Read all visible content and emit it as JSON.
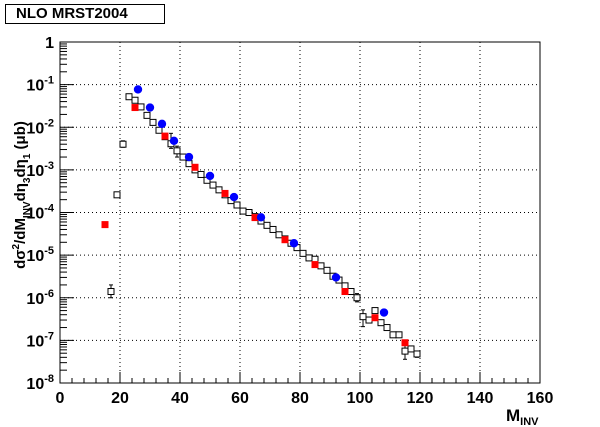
{
  "legend": {
    "label": "NLO MRST2004"
  },
  "chart_data": {
    "type": "scatter",
    "xlabel": "M",
    "xlabel_sub": "INV",
    "ylabel_parts": [
      {
        "t": "dσ"
      },
      {
        "t": "2",
        "sup": true
      },
      {
        "t": "/dM"
      },
      {
        "t": "INV",
        "sub": true
      },
      {
        "t": "dη"
      },
      {
        "t": "3",
        "sub": true
      },
      {
        "t": "dη"
      },
      {
        "t": "1",
        "sub": true
      },
      {
        "t": "  (μb)"
      }
    ],
    "xlim": [
      0,
      160
    ],
    "ylim": [
      1e-08,
      1
    ],
    "y_log": true,
    "grid": true,
    "x_ticks": [
      "0",
      "20",
      "40",
      "60",
      "80",
      "100",
      "120",
      "140",
      "160"
    ],
    "y_ticks": [
      {
        "base": "1",
        "exp": ""
      },
      {
        "base": "10",
        "exp": "-1"
      },
      {
        "base": "10",
        "exp": "-2"
      },
      {
        "base": "10",
        "exp": "-3"
      },
      {
        "base": "10",
        "exp": "-4"
      },
      {
        "base": "10",
        "exp": "-5"
      },
      {
        "base": "10",
        "exp": "-6"
      },
      {
        "base": "10",
        "exp": "-7"
      },
      {
        "base": "10",
        "exp": "-8"
      }
    ],
    "series": [
      {
        "marker": "open-square",
        "color": "#000000",
        "points": [
          {
            "x": 17,
            "y": 1.4e-06,
            "ylo": 1e-06,
            "yhi": 2e-06
          },
          {
            "x": 19,
            "y": 0.00026
          },
          {
            "x": 21,
            "y": 0.004,
            "ylo": 0.0034,
            "yhi": 0.0048
          },
          {
            "x": 23,
            "y": 0.052
          },
          {
            "x": 25,
            "y": 0.043
          },
          {
            "x": 27,
            "y": 0.03
          },
          {
            "x": 29,
            "y": 0.019
          },
          {
            "x": 31,
            "y": 0.013
          },
          {
            "x": 33,
            "y": 0.0085
          },
          {
            "x": 35,
            "y": 0.006
          },
          {
            "x": 37,
            "y": 0.0041,
            "ylo": 0.0032,
            "yhi": 0.0072
          },
          {
            "x": 39,
            "y": 0.0028,
            "ylo": 0.002,
            "yhi": 0.0036
          },
          {
            "x": 41,
            "y": 0.002
          },
          {
            "x": 43,
            "y": 0.0014
          },
          {
            "x": 45,
            "y": 0.001
          },
          {
            "x": 47,
            "y": 0.00078
          },
          {
            "x": 49,
            "y": 0.00057
          },
          {
            "x": 51,
            "y": 0.00044
          },
          {
            "x": 53,
            "y": 0.00034
          },
          {
            "x": 55,
            "y": 0.00026
          },
          {
            "x": 57,
            "y": 0.00019
          },
          {
            "x": 59,
            "y": 0.00015
          },
          {
            "x": 61,
            "y": 0.000108
          },
          {
            "x": 63,
            "y": 0.0001
          },
          {
            "x": 65,
            "y": 8e-05
          },
          {
            "x": 67,
            "y": 6.3e-05
          },
          {
            "x": 69,
            "y": 5e-05
          },
          {
            "x": 71,
            "y": 4e-05
          },
          {
            "x": 73,
            "y": 3e-05
          },
          {
            "x": 75,
            "y": 2.4e-05
          },
          {
            "x": 77,
            "y": 1.9e-05
          },
          {
            "x": 79,
            "y": 1.5e-05
          },
          {
            "x": 81,
            "y": 1.1e-05
          },
          {
            "x": 83,
            "y": 8.6e-06
          },
          {
            "x": 85,
            "y": 8e-06
          },
          {
            "x": 87,
            "y": 5.6e-06
          },
          {
            "x": 89,
            "y": 4.4e-06
          },
          {
            "x": 91,
            "y": 3.2e-06
          },
          {
            "x": 93,
            "y": 2.6e-06
          },
          {
            "x": 95,
            "y": 1.9e-06
          },
          {
            "x": 97,
            "y": 1.4e-06
          },
          {
            "x": 99,
            "y": 1e-06,
            "ylo": 8e-07,
            "yhi": 1.25e-06
          },
          {
            "x": 101,
            "y": 3.6e-07,
            "ylo": 2.1e-07,
            "yhi": 5.2e-07
          },
          {
            "x": 103,
            "y": 3e-07
          },
          {
            "x": 105,
            "y": 5e-07
          },
          {
            "x": 107,
            "y": 2.6e-07
          },
          {
            "x": 109,
            "y": 2e-07
          },
          {
            "x": 111,
            "y": 1.35e-07
          },
          {
            "x": 113,
            "y": 1.35e-07
          },
          {
            "x": 115,
            "y": 5.6e-08,
            "ylo": 3.6e-08,
            "yhi": 8e-08
          },
          {
            "x": 117,
            "y": 6.3e-08
          },
          {
            "x": 119,
            "y": 4.8e-08,
            "ylo": 4e-08,
            "yhi": 5.6e-08
          }
        ]
      },
      {
        "marker": "filled-square",
        "color": "#ff0000",
        "points": [
          {
            "x": 15,
            "y": 5.2e-05
          },
          {
            "x": 25,
            "y": 0.029
          },
          {
            "x": 35,
            "y": 0.0062
          },
          {
            "x": 45,
            "y": 0.00115
          },
          {
            "x": 55,
            "y": 0.00028
          },
          {
            "x": 65,
            "y": 7.6e-05
          },
          {
            "x": 75,
            "y": 2.3e-05
          },
          {
            "x": 85,
            "y": 6e-06
          },
          {
            "x": 95,
            "y": 1.4e-06
          },
          {
            "x": 105,
            "y": 3.4e-07
          },
          {
            "x": 115,
            "y": 8.8e-08
          }
        ]
      },
      {
        "marker": "filled-circle",
        "color": "#0000ff",
        "points": [
          {
            "x": 26,
            "y": 0.077
          },
          {
            "x": 30,
            "y": 0.029
          },
          {
            "x": 34,
            "y": 0.012
          },
          {
            "x": 38,
            "y": 0.0048
          },
          {
            "x": 43,
            "y": 0.002
          },
          {
            "x": 50,
            "y": 0.00072
          },
          {
            "x": 58,
            "y": 0.00023
          },
          {
            "x": 67,
            "y": 7.7e-05
          },
          {
            "x": 78,
            "y": 1.9e-05
          },
          {
            "x": 92,
            "y": 3e-06
          },
          {
            "x": 108,
            "y": 4.5e-07
          }
        ]
      }
    ]
  }
}
